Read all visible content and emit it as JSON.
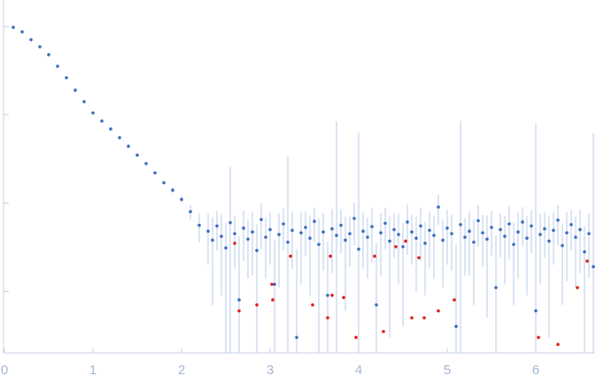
{
  "chart_data": {
    "type": "scatter",
    "log_y": true,
    "xlim": [
      -0.01,
      6.67
    ],
    "ylim": [
      0.0002,
      2
    ],
    "xticks": [
      0,
      1,
      2,
      3,
      4,
      5,
      6
    ],
    "yticks": [
      1,
      0.1,
      0.01,
      0.001
    ],
    "axis_color": "#c5d0e3",
    "tick_label_color": "#a6b6d6",
    "series": [
      {
        "color": "#3d6dbf",
        "error_color": "#b9cbe8",
        "x": [
          0.1,
          0.2,
          0.3,
          0.4,
          0.5,
          0.6,
          0.7,
          0.8,
          0.9,
          1,
          1.1,
          1.2,
          1.3,
          1.4,
          1.5,
          1.6,
          1.7,
          1.8,
          1.9,
          2,
          2.1,
          2.2,
          2.3,
          2.35,
          2.4,
          2.45,
          2.5,
          2.55,
          2.6,
          2.65,
          2.7,
          2.75,
          2.8,
          2.85,
          2.9,
          2.95,
          3,
          3.05,
          3.1,
          3.15,
          3.2,
          3.25,
          3.3,
          3.35,
          3.4,
          3.45,
          3.5,
          3.55,
          3.6,
          3.65,
          3.7,
          3.75,
          3.8,
          3.85,
          3.9,
          3.95,
          4,
          4.05,
          4.1,
          4.15,
          4.2,
          4.25,
          4.3,
          4.35,
          4.4,
          4.45,
          4.5,
          4.55,
          4.6,
          4.65,
          4.7,
          4.75,
          4.8,
          4.85,
          4.9,
          4.95,
          5,
          5.05,
          5.1,
          5.15,
          5.2,
          5.25,
          5.3,
          5.35,
          5.4,
          5.45,
          5.5,
          5.55,
          5.6,
          5.65,
          5.7,
          5.75,
          5.8,
          5.85,
          5.9,
          5.95,
          6,
          6.05,
          6.1,
          6.15,
          6.2,
          6.25,
          6.3,
          6.35,
          6.4,
          6.45,
          6.5,
          6.55,
          6.6,
          6.65
        ],
        "values": [
          0.98,
          0.87,
          0.71,
          0.59,
          0.48,
          0.355,
          0.263,
          0.19,
          0.141,
          0.105,
          0.085,
          0.069,
          0.055,
          0.044,
          0.035,
          0.028,
          0.022,
          0.017,
          0.014,
          0.011,
          0.008,
          0.0056,
          0.0048,
          0.0038,
          0.0055,
          0.0042,
          0.0031,
          0.006,
          0.0045,
          0.0008,
          0.0052,
          0.0039,
          0.0047,
          0.0029,
          0.0065,
          0.0041,
          0.005,
          0.0012,
          0.0044,
          0.0058,
          0.0036,
          0.0049,
          0.0003,
          0.0046,
          0.0053,
          0.004,
          0.0062,
          0.0034,
          0.0047,
          0.0009,
          0.0051,
          0.0043,
          0.0056,
          0.0038,
          0.0045,
          0.0067,
          0.003,
          0.0048,
          0.0041,
          0.0054,
          0.0007,
          0.0046,
          0.0059,
          0.0037,
          0.005,
          0.0044,
          0.0032,
          0.0061,
          0.0047,
          0.004,
          0.0055,
          0.0035,
          0.0049,
          0.0043,
          0.009,
          0.0038,
          0.0052,
          0.0045,
          0.0004,
          0.0057,
          0.0041,
          0.0048,
          0.0036,
          0.0063,
          0.0046,
          0.0039,
          0.0053,
          0.0011,
          0.005,
          0.0042,
          0.0058,
          0.0034,
          0.0047,
          0.0061,
          0.004,
          0.0055,
          0.0006,
          0.0044,
          0.0051,
          0.0037,
          0.0049,
          0.0064,
          0.0033,
          0.0046,
          0.0057,
          0.0041,
          0.005,
          0.0028,
          0.0045,
          0.0019
        ],
        "errors": [
          0.02,
          0.017,
          0.014,
          0.012,
          0.01,
          0.007,
          0.005,
          0.004,
          0.003,
          0.002,
          0.002,
          0.0015,
          0.0012,
          0.001,
          0.0009,
          0.0008,
          0.0008,
          0.0008,
          0.0009,
          0.001,
          0.0015,
          0.002,
          0.0028,
          0.0031,
          0.0026,
          0.0033,
          0.0029,
          0.02,
          0.0027,
          0.0034,
          0.003,
          0.0025,
          0.0032,
          0.0028,
          0.0035,
          0.0027,
          0.003,
          0.0026,
          0.0033,
          0.0029,
          0.03,
          0.0031,
          0.0027,
          0.0034,
          0.0028,
          0.0031,
          0.0026,
          0.0033,
          0.003,
          0.0027,
          0.0035,
          0.08,
          0.0029,
          0.0032,
          0.0026,
          0.0034,
          0.06,
          0.003,
          0.0027,
          0.0033,
          0.0028,
          0.0031,
          0.0029,
          0.0034,
          0.0026,
          0.0032,
          0.0028,
          0.0035,
          0.0027,
          0.003,
          0.0033,
          0.0026,
          0.0031,
          0.0029,
          0.0034,
          0.0027,
          0.0032,
          0.0028,
          0.003,
          0.08,
          0.0026,
          0.0033,
          0.0029,
          0.0031,
          0.0027,
          0.0034,
          0.0028,
          0.0032,
          0.0026,
          0.003,
          0.0035,
          0.0027,
          0.0033,
          0.0029,
          0.0031,
          0.0028,
          0.08,
          0.0032,
          0.0027,
          0.0034,
          0.0029,
          0.0031,
          0.0026,
          0.0033,
          0.0028,
          0.003,
          0.0034,
          0.0027,
          0.0031,
          0.06
        ]
      },
      {
        "color": "#e0201a",
        "x": [
          2.6,
          2.65,
          2.85,
          3.02,
          3.03,
          3.23,
          3.48,
          3.65,
          3.68,
          3.7,
          3.83,
          3.97,
          4.18,
          4.28,
          4.42,
          4.53,
          4.6,
          4.68,
          4.74,
          4.9,
          5.08,
          6.03,
          6.25,
          6.47,
          6.58
        ],
        "values": [
          0.0035,
          0.0006,
          0.0007,
          0.0012,
          0.0008,
          0.0025,
          0.0007,
          0.0005,
          0.0025,
          0.0009,
          0.00085,
          0.0003,
          0.0025,
          0.00035,
          0.0032,
          0.0037,
          0.0005,
          0.0024,
          0.0005,
          0.0006,
          0.0008,
          0.0003,
          0.00025,
          0.0011,
          0.0022
        ]
      }
    ]
  }
}
